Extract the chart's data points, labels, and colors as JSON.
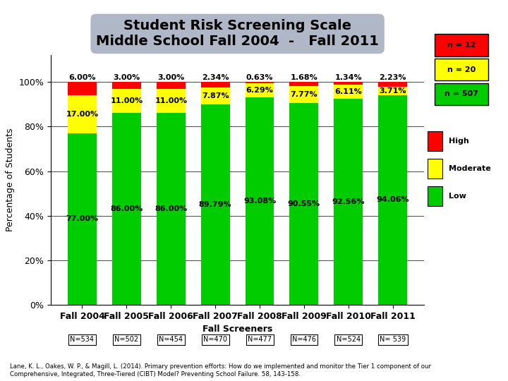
{
  "title": "Student Risk Screening Scale\nMiddle School Fall 2004  -   Fall 2011",
  "categories": [
    "Fall 2004",
    "Fall 2005",
    "Fall 2006",
    "Fall 2007",
    "Fall 2008",
    "Fall 2009",
    "Fall 2010",
    "Fall 2011"
  ],
  "n_labels": [
    "N=534",
    "N=502",
    "N=454",
    "N=470",
    "N=477",
    "N=476",
    "N=524",
    "N= 539"
  ],
  "low": [
    77.0,
    86.0,
    86.0,
    89.79,
    93.08,
    90.55,
    92.56,
    94.06
  ],
  "moderate": [
    17.0,
    11.0,
    11.0,
    7.87,
    6.29,
    7.77,
    6.11,
    3.71
  ],
  "high": [
    6.0,
    3.0,
    3.0,
    2.34,
    0.63,
    1.68,
    1.34,
    2.23
  ],
  "low_labels": [
    "77.00%",
    "86.00%",
    "86.00%",
    "89.79%",
    "93.08%",
    "90.55%",
    "92.56%",
    "94.06%"
  ],
  "moderate_labels": [
    "17.00%",
    "11.00%",
    "11.00%",
    "7.87%",
    "6.29%",
    "7.77%",
    "6.11%",
    "3.71%"
  ],
  "high_labels": [
    "6.00%",
    "3.00%",
    "3.00%",
    "2.34%",
    "0.63%",
    "1.68%",
    "1.34%",
    "2.23%"
  ],
  "color_low": "#00CC00",
  "color_moderate": "#FFFF00",
  "color_high": "#FF0000",
  "xlabel": "Fall Screeners",
  "ylabel": "Percentage of Students",
  "footnote": "Lane, K. L., Oakes, W. P., & Magill, L. (2014). Primary prevention efforts: How do we implemented and monitor the Tier 1 component of our\nComprehensive, Integrated, Three-Tiered (CIBT) Model? Preventing School Failure. 58, 143-158.",
  "legend_n12": "n = 12",
  "legend_n20": "n = 20",
  "legend_n507": "n = 507",
  "title_bg": "#B0B8C8"
}
